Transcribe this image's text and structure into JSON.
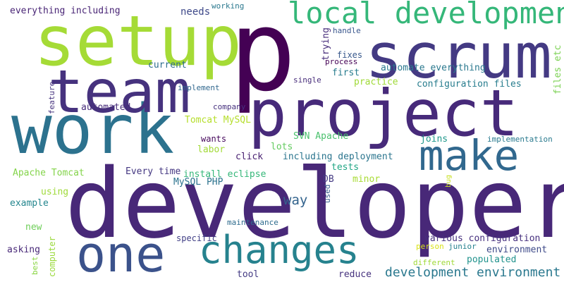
{
  "words": [
    {
      "text": "developer",
      "color": "#482878"
    },
    {
      "text": "p",
      "color": "#440154"
    },
    {
      "text": "project",
      "color": "#472a7a"
    },
    {
      "text": "setup",
      "color": "#a5db36"
    },
    {
      "text": "scrum",
      "color": "#443a83"
    },
    {
      "text": "work",
      "color": "#2c728e"
    },
    {
      "text": "team",
      "color": "#46327e"
    },
    {
      "text": "local development",
      "color": "#35b779"
    },
    {
      "text": "make",
      "color": "#31688e"
    },
    {
      "text": "one",
      "color": "#3b528b"
    },
    {
      "text": "changes",
      "color": "#26828e"
    },
    {
      "text": "development environment",
      "color": "#2a788e"
    },
    {
      "text": "way",
      "color": "#33638d"
    },
    {
      "text": "everything including",
      "color": "#482475"
    },
    {
      "text": "needs",
      "color": "#3e4989"
    },
    {
      "text": "working",
      "color": "#2a788e"
    },
    {
      "text": "handle",
      "color": "#39568c"
    },
    {
      "text": "trying",
      "color": "#472d7b"
    },
    {
      "text": "fixes",
      "color": "#38588c"
    },
    {
      "text": "process",
      "color": "#440154"
    },
    {
      "text": "first",
      "color": "#287c8e"
    },
    {
      "text": "current",
      "color": "#2e6e8e"
    },
    {
      "text": "automate everything",
      "color": "#2a788e"
    },
    {
      "text": "files etc",
      "color": "#7ad151"
    },
    {
      "text": "implement",
      "color": "#31688e"
    },
    {
      "text": "single",
      "color": "#472c7a"
    },
    {
      "text": "practice",
      "color": "#a0da39"
    },
    {
      "text": "configuration files",
      "color": "#287d8e"
    },
    {
      "text": "feature",
      "color": "#46337f"
    },
    {
      "text": "automated",
      "color": "#472c7a"
    },
    {
      "text": "company",
      "color": "#46307e"
    },
    {
      "text": "Tomcat MySQL",
      "color": "#b5de2b"
    },
    {
      "text": "implementation",
      "color": "#297a8e"
    },
    {
      "text": "SVN Apache",
      "color": "#4ac16d"
    },
    {
      "text": "joins",
      "color": "#1f988b"
    },
    {
      "text": "wants",
      "color": "#46085c"
    },
    {
      "text": "labor",
      "color": "#a2da37"
    },
    {
      "text": "lots",
      "color": "#63cb5f"
    },
    {
      "text": "click",
      "color": "#482071"
    },
    {
      "text": "including deployment",
      "color": "#2b758e"
    },
    {
      "text": "tests",
      "color": "#21a685"
    },
    {
      "text": "Apache Tomcat",
      "color": "#84d44b"
    },
    {
      "text": "Every time",
      "color": "#453882"
    },
    {
      "text": "MySQL PHP",
      "color": "#2c738e"
    },
    {
      "text": "install eclipse",
      "color": "#35b779"
    },
    {
      "text": "DB",
      "color": "#443a83"
    },
    {
      "text": "minor",
      "color": "#a8db34"
    },
    {
      "text": "used",
      "color": "#365c8d"
    },
    {
      "text": "bug",
      "color": "#c8e020"
    },
    {
      "text": "using",
      "color": "#9fda3a"
    },
    {
      "text": "example",
      "color": "#24868e"
    },
    {
      "text": "new",
      "color": "#6ece58"
    },
    {
      "text": "maintenance",
      "color": "#2f6c8e"
    },
    {
      "text": "asking",
      "color": "#482878"
    },
    {
      "text": "computer",
      "color": "#9bd93c"
    },
    {
      "text": "specific",
      "color": "#424086"
    },
    {
      "text": "various configuration",
      "color": "#46307e"
    },
    {
      "text": "person",
      "color": "#d8e219"
    },
    {
      "text": "junior",
      "color": "#26828e"
    },
    {
      "text": "environment",
      "color": "#3e4a89"
    },
    {
      "text": "best",
      "color": "#8bd646"
    },
    {
      "text": "populated",
      "color": "#20928c"
    },
    {
      "text": "different",
      "color": "#a0da39"
    },
    {
      "text": "tool",
      "color": "#443b84"
    },
    {
      "text": "reduce",
      "color": "#46327e"
    }
  ]
}
